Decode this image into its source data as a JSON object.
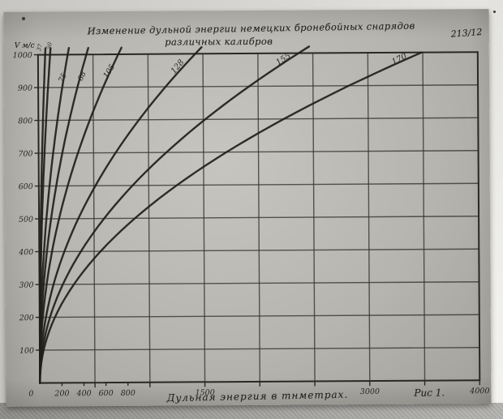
{
  "photo": {
    "doc_number": "213/12"
  },
  "chart_data": {
    "type": "line",
    "title_line1": "Изменение дульной энергии немецких бронебойных снарядов",
    "title_line2": "различных калибров",
    "xlabel": "Дульная энергия в тнметрах.",
    "ylabel": "V м/с",
    "fig_label": "Рис 1.",
    "xlim": [
      0,
      4000
    ],
    "ylim": [
      0,
      1000
    ],
    "grid": true,
    "x_grid_step": 500,
    "y_grid_step": 100,
    "x_tick_labels": [
      0,
      200,
      400,
      600,
      800,
      1500,
      3000,
      4000
    ],
    "y_tick_labels": [
      100,
      200,
      300,
      400,
      500,
      600,
      700,
      800,
      900,
      1000
    ],
    "legend_position": "labels-along-curves",
    "v_points": [
      0,
      200,
      400,
      600,
      800,
      1000
    ],
    "series": [
      {
        "name": "37",
        "caliber_mm": 37,
        "e_at_v1000": 65,
        "e_points": [
          0,
          3,
          10,
          23,
          42,
          65
        ],
        "v_max": 1025,
        "label": {
          "x": 45,
          "y": 49,
          "rot": -75,
          "size": 7
        }
      },
      {
        "name": "50",
        "caliber_mm": 50,
        "e_at_v1000": 110,
        "e_points": [
          0,
          4,
          18,
          40,
          70,
          110
        ],
        "v_max": 1025,
        "label": {
          "x": 57,
          "y": 47,
          "rot": -75,
          "size": 7
        }
      },
      {
        "name": "75",
        "caliber_mm": 75,
        "e_at_v1000": 270,
        "e_points": [
          0,
          11,
          43,
          97,
          173,
          270
        ],
        "v_max": 1030,
        "label": {
          "x": 72,
          "y": 88,
          "rot": -63,
          "size": 9
        }
      },
      {
        "name": "88",
        "caliber_mm": 88,
        "e_at_v1000": 440,
        "e_points": [
          0,
          18,
          70,
          158,
          282,
          440
        ],
        "v_max": 1030,
        "label": {
          "x": 96,
          "y": 86,
          "rot": -63,
          "size": 9
        }
      },
      {
        "name": "105",
        "caliber_mm": 105,
        "e_at_v1000": 730,
        "e_points": [
          0,
          29,
          117,
          263,
          467,
          730
        ],
        "v_max": 1035,
        "label": {
          "x": 127,
          "y": 83,
          "rot": -57,
          "size": 9.5
        }
      },
      {
        "name": "128",
        "caliber_mm": 128,
        "e_at_v1000": 1430,
        "e_points": [
          0,
          57,
          229,
          515,
          915,
          1430
        ],
        "v_max": 1035,
        "label": {
          "x": 210,
          "y": 78,
          "rot": -50,
          "size": 10
        }
      },
      {
        "name": "155",
        "caliber_mm": 155,
        "e_at_v1000": 2370,
        "e_points": [
          0,
          95,
          379,
          853,
          1517,
          2370
        ],
        "v_max": 1020,
        "label": {
          "x": 338,
          "y": 68,
          "rot": -33,
          "size": 10
        }
      },
      {
        "name": "170",
        "caliber_mm": 170,
        "e_at_v1000": 3490,
        "e_points": [
          0,
          140,
          558,
          1256,
          2234,
          3490
        ],
        "v_max": 1000,
        "label": {
          "x": 480,
          "y": 68,
          "rot": -27,
          "size": 10
        }
      }
    ]
  }
}
